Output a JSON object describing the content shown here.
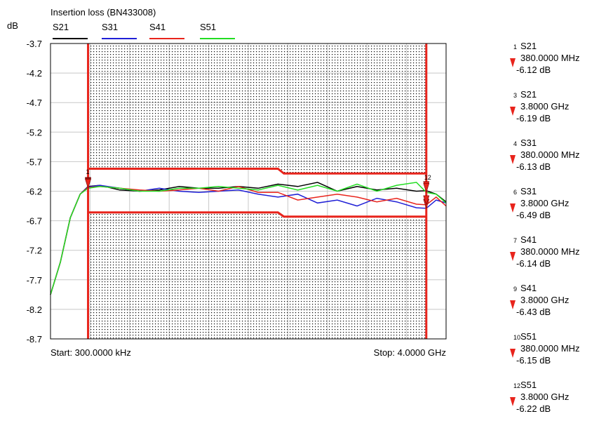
{
  "chart_data": {
    "type": "line",
    "title": "Insertion loss (BN433008)",
    "ylabel": "dB",
    "ylim": [
      -8.7,
      -3.7
    ],
    "yticks": [
      "-3.7",
      "-4.2",
      "-4.7",
      "-5.2",
      "-5.7",
      "-6.2",
      "-6.7",
      "-7.2",
      "-7.7",
      "-8.2",
      "-8.7"
    ],
    "xlim_ghz": [
      0.0003,
      4.0
    ],
    "start_label": "Start: 300.0000 kHz",
    "stop_label": "Stop: 4.0000 GHz",
    "grid": true,
    "legend_position": "top",
    "series": [
      {
        "name": "S21",
        "color": "#000000",
        "x": [
          0.0003,
          0.1,
          0.2,
          0.3,
          0.38,
          0.5,
          0.7,
          0.9,
          1.1,
          1.3,
          1.5,
          1.7,
          1.9,
          2.1,
          2.3,
          2.5,
          2.7,
          2.9,
          3.1,
          3.3,
          3.5,
          3.7,
          3.8,
          3.9,
          4.0
        ],
        "y": [
          -7.95,
          -7.4,
          -6.65,
          -6.25,
          -6.12,
          -6.1,
          -6.18,
          -6.2,
          -6.18,
          -6.12,
          -6.15,
          -6.15,
          -6.12,
          -6.15,
          -6.08,
          -6.12,
          -6.05,
          -6.2,
          -6.12,
          -6.18,
          -6.15,
          -6.2,
          -6.19,
          -6.25,
          -6.38
        ]
      },
      {
        "name": "S31",
        "color": "#1f1fd6",
        "x": [
          0.0003,
          0.1,
          0.2,
          0.3,
          0.38,
          0.5,
          0.7,
          0.9,
          1.1,
          1.3,
          1.5,
          1.7,
          1.9,
          2.1,
          2.3,
          2.5,
          2.7,
          2.9,
          3.1,
          3.3,
          3.5,
          3.7,
          3.8,
          3.9,
          4.0
        ],
        "y": [
          -7.95,
          -7.4,
          -6.65,
          -6.25,
          -6.13,
          -6.1,
          -6.15,
          -6.2,
          -6.15,
          -6.2,
          -6.22,
          -6.2,
          -6.18,
          -6.25,
          -6.3,
          -6.25,
          -6.4,
          -6.35,
          -6.45,
          -6.32,
          -6.38,
          -6.48,
          -6.49,
          -6.35,
          -6.4
        ]
      },
      {
        "name": "S41",
        "color": "#e8241c",
        "x": [
          0.0003,
          0.1,
          0.2,
          0.3,
          0.38,
          0.5,
          0.7,
          0.9,
          1.1,
          1.3,
          1.5,
          1.7,
          1.9,
          2.1,
          2.3,
          2.5,
          2.7,
          2.9,
          3.1,
          3.3,
          3.5,
          3.7,
          3.8,
          3.9,
          4.0
        ],
        "y": [
          -7.95,
          -7.4,
          -6.65,
          -6.25,
          -6.14,
          -6.12,
          -6.15,
          -6.18,
          -6.2,
          -6.18,
          -6.15,
          -6.2,
          -6.12,
          -6.22,
          -6.22,
          -6.35,
          -6.3,
          -6.25,
          -6.3,
          -6.38,
          -6.32,
          -6.42,
          -6.43,
          -6.3,
          -6.45
        ]
      },
      {
        "name": "S51",
        "color": "#22dd22",
        "x": [
          0.0003,
          0.1,
          0.2,
          0.3,
          0.38,
          0.5,
          0.7,
          0.9,
          1.1,
          1.3,
          1.5,
          1.7,
          1.9,
          2.1,
          2.3,
          2.5,
          2.7,
          2.9,
          3.1,
          3.3,
          3.5,
          3.7,
          3.8,
          3.9,
          4.0
        ],
        "y": [
          -7.95,
          -7.4,
          -6.65,
          -6.25,
          -6.15,
          -6.12,
          -6.15,
          -6.2,
          -6.2,
          -6.15,
          -6.15,
          -6.12,
          -6.15,
          -6.18,
          -6.1,
          -6.18,
          -6.1,
          -6.2,
          -6.08,
          -6.2,
          -6.1,
          -6.05,
          -6.22,
          -6.25,
          -6.4
        ]
      }
    ],
    "limit_lines": {
      "color": "#e8241c",
      "upper": [
        {
          "x": [
            0.38,
            2.3
          ],
          "y": -5.82
        },
        {
          "x": [
            2.3,
            2.36
          ],
          "y": [
            -5.82,
            -5.9
          ]
        },
        {
          "x": [
            2.36,
            3.8
          ],
          "y": -5.9
        }
      ],
      "lower": [
        {
          "x": [
            0.38,
            2.3
          ],
          "y": -6.56
        },
        {
          "x": [
            2.3,
            2.36
          ],
          "y": [
            -6.56,
            -6.63
          ]
        },
        {
          "x": [
            2.36,
            3.8
          ],
          "y": -6.63
        }
      ],
      "verticals": [
        0.38,
        3.8
      ]
    },
    "markers": [
      {
        "num": "1",
        "trace": "S21",
        "freq": "380.0000 MHz",
        "value": "-6.12 dB"
      },
      {
        "num": "3",
        "trace": "S21",
        "freq": "3.8000 GHz",
        "value": "-6.19 dB"
      },
      {
        "num": "4",
        "trace": "S31",
        "freq": "380.0000 MHz",
        "value": "-6.13 dB"
      },
      {
        "num": "6",
        "trace": "S31",
        "freq": "3.8000 GHz",
        "value": "-6.49 dB"
      },
      {
        "num": "7",
        "trace": "S41",
        "freq": "380.0000 MHz",
        "value": "-6.14 dB"
      },
      {
        "num": "9",
        "trace": "S41",
        "freq": "3.8000 GHz",
        "value": "-6.43 dB"
      },
      {
        "num": "10",
        "trace": "S51",
        "freq": "380.0000 MHz",
        "value": "-6.15 dB"
      },
      {
        "num": "12",
        "trace": "S51",
        "freq": "3.8000 GHz",
        "value": "-6.22 dB"
      }
    ],
    "plot_marker_labels": [
      {
        "text": "1",
        "x": 0.38,
        "y": -6.12
      },
      {
        "text": "12",
        "x": 3.8,
        "y": -6.22
      }
    ]
  }
}
